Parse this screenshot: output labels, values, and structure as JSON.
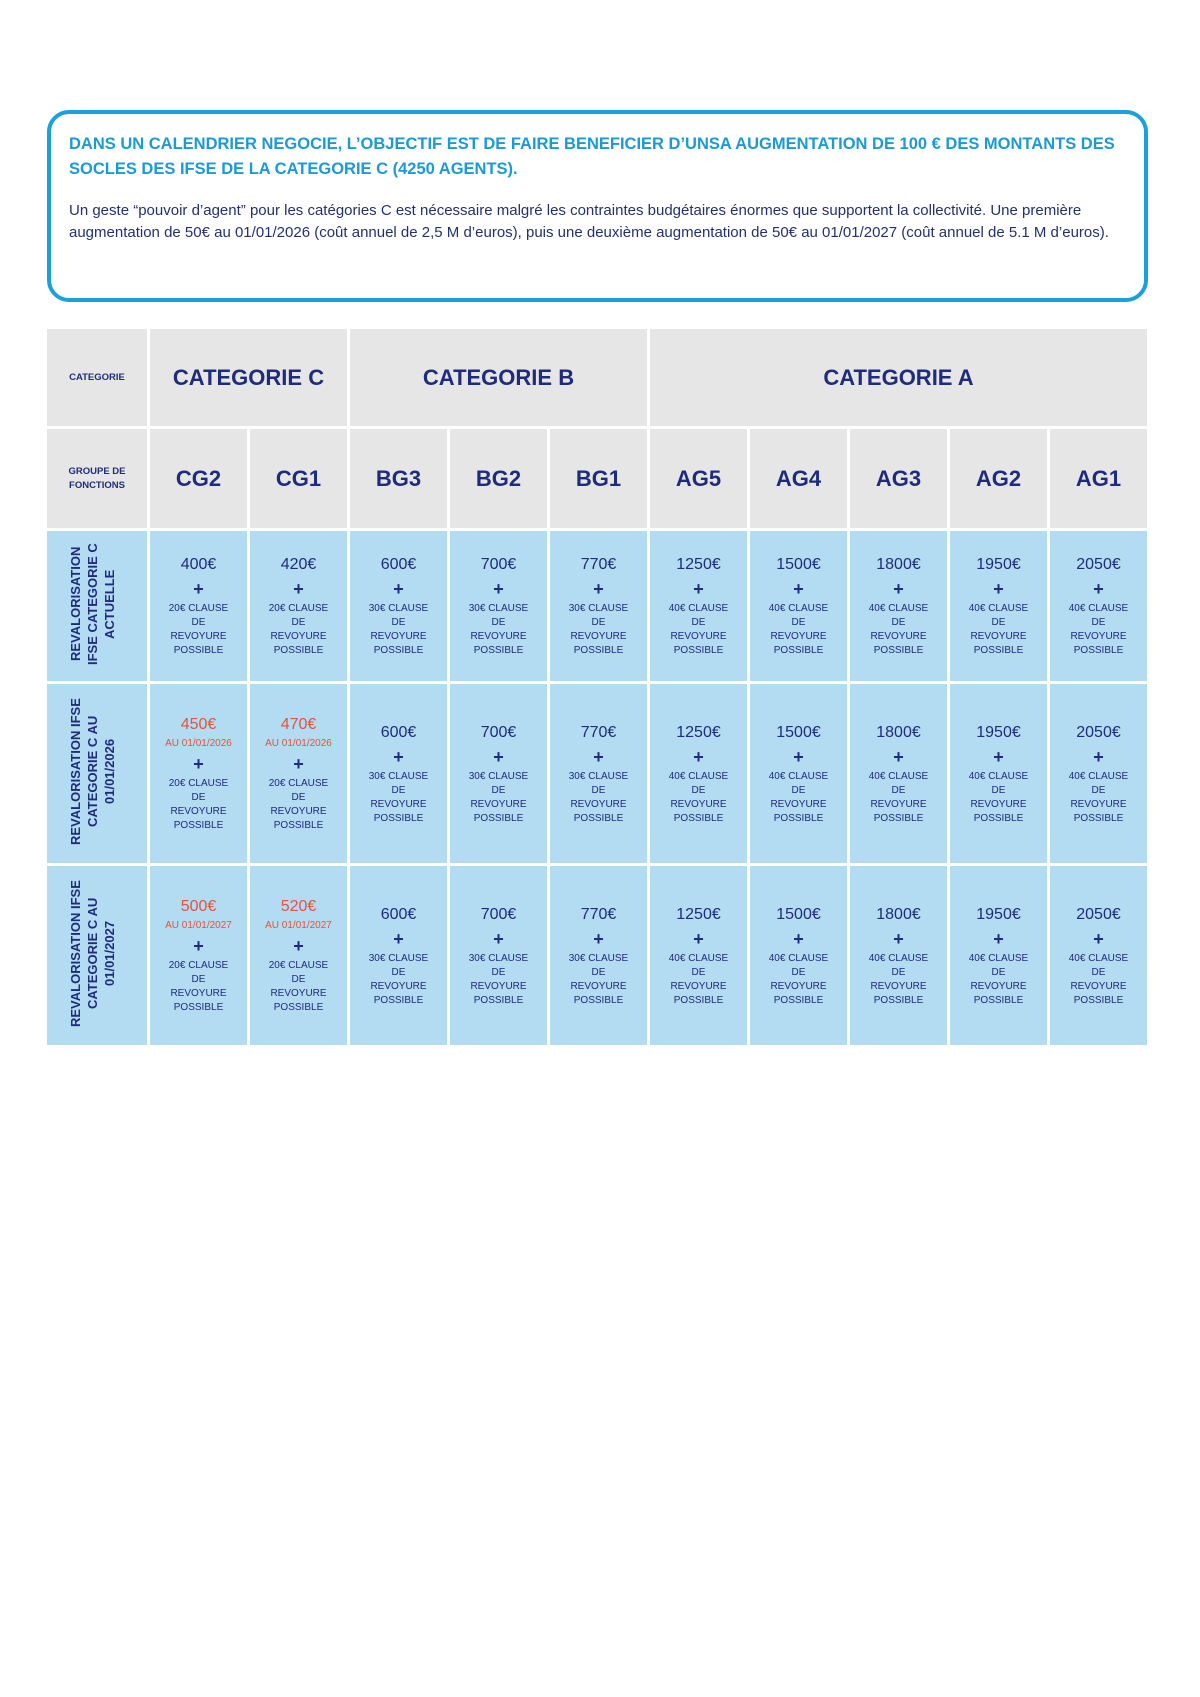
{
  "intro": {
    "title": "DANS UN CALENDRIER NEGOCIE, L’OBJECTIF EST DE FAIRE BENEFICIER D’UNSA AUGMENTATION DE 100 € DES MONTANTS DES SOCLES DES IFSE DE LA CATEGORIE C (4250 AGENTS).",
    "body": "Un geste “pouvoir d’agent” pour les catégories C est nécessaire malgré les contraintes budgétaires énormes que supportent la collectivité. Une première augmentation de 50€ au 01/01/2026 (coût annuel de 2,5 M d’euros), puis une deuxième augmentation de 50€ au 01/01/2027 (coût annuel de 5.1 M d’euros)."
  },
  "table": {
    "row_label_categorie": "CATEGORIE",
    "row_label_groupe": "GROUPE DE FONCTIONS",
    "categories": [
      "CATEGORIE C",
      "CATEGORIE B",
      "CATEGORIE A"
    ],
    "groups": [
      "CG2",
      "CG1",
      "BG3",
      "BG2",
      "BG1",
      "AG5",
      "AG4",
      "AG3",
      "AG2",
      "AG1"
    ],
    "plus": "+",
    "rows": [
      {
        "label": "REVALORISATION IFSE CATEGORIE C ACTUELLE",
        "cells": [
          {
            "amount": "400€",
            "note": "20€ CLAUSE DE REVOYURE POSSIBLE"
          },
          {
            "amount": "420€",
            "note": "20€ CLAUSE DE REVOYURE POSSIBLE"
          },
          {
            "amount": "600€",
            "note": "30€ CLAUSE DE REVOYURE POSSIBLE"
          },
          {
            "amount": "700€",
            "note": "30€ CLAUSE DE REVOYURE POSSIBLE"
          },
          {
            "amount": "770€",
            "note": "30€ CLAUSE DE REVOYURE POSSIBLE"
          },
          {
            "amount": "1250€",
            "note": "40€ CLAUSE DE REVOYURE POSSIBLE"
          },
          {
            "amount": "1500€",
            "note": "40€ CLAUSE DE REVOYURE POSSIBLE"
          },
          {
            "amount": "1800€",
            "note": "40€ CLAUSE DE REVOYURE POSSIBLE"
          },
          {
            "amount": "1950€",
            "note": "40€ CLAUSE DE REVOYURE POSSIBLE"
          },
          {
            "amount": "2050€",
            "note": "40€ CLAUSE DE REVOYURE POSSIBLE"
          }
        ]
      },
      {
        "label": "REVALORISATION IFSE CATEGORIE C AU 01/01/2026",
        "cells": [
          {
            "amount": "450€",
            "date": "AU 01/01/2026",
            "note": "20€ CLAUSE DE REVOYURE POSSIBLE"
          },
          {
            "amount": "470€",
            "date": "AU 01/01/2026",
            "note": "20€ CLAUSE DE REVOYURE POSSIBLE"
          },
          {
            "amount": "600€",
            "note": "30€ CLAUSE DE REVOYURE POSSIBLE"
          },
          {
            "amount": "700€",
            "note": "30€ CLAUSE DE REVOYURE POSSIBLE"
          },
          {
            "amount": "770€",
            "note": "30€ CLAUSE DE REVOYURE POSSIBLE"
          },
          {
            "amount": "1250€",
            "note": "40€ CLAUSE DE REVOYURE POSSIBLE"
          },
          {
            "amount": "1500€",
            "note": "40€ CLAUSE DE REVOYURE POSSIBLE"
          },
          {
            "amount": "1800€",
            "note": "40€ CLAUSE DE REVOYURE POSSIBLE"
          },
          {
            "amount": "1950€",
            "note": "40€ CLAUSE DE REVOYURE POSSIBLE"
          },
          {
            "amount": "2050€",
            "note": "40€ CLAUSE DE REVOYURE POSSIBLE"
          }
        ]
      },
      {
        "label": "REVALORISATION IFSE CATEGORIE C AU 01/01/2027",
        "cells": [
          {
            "amount": "500€",
            "date": "AU 01/01/2027",
            "note": "20€ CLAUSE DE REVOYURE POSSIBLE"
          },
          {
            "amount": "520€",
            "date": "AU 01/01/2027",
            "note": "20€ CLAUSE DE REVOYURE POSSIBLE"
          },
          {
            "amount": "600€",
            "note": "30€ CLAUSE DE REVOYURE POSSIBLE"
          },
          {
            "amount": "700€",
            "note": "30€ CLAUSE DE REVOYURE POSSIBLE"
          },
          {
            "amount": "770€",
            "note": "30€ CLAUSE DE REVOYURE POSSIBLE"
          },
          {
            "amount": "1250€",
            "note": "40€ CLAUSE DE REVOYURE POSSIBLE"
          },
          {
            "amount": "1500€",
            "note": "40€ CLAUSE DE REVOYURE POSSIBLE"
          },
          {
            "amount": "1800€",
            "note": "40€ CLAUSE DE REVOYURE POSSIBLE"
          },
          {
            "amount": "1950€",
            "note": "40€ CLAUSE DE REVOYURE POSSIBLE"
          },
          {
            "amount": "2050€",
            "note": "40€ CLAUSE DE REVOYURE POSSIBLE"
          }
        ]
      }
    ]
  },
  "colors": {
    "accent": "#1aa0dc",
    "navy": "#1f2b7b",
    "highlight": "#e0553e",
    "cell": "#b3dbf1",
    "header": "#e6e6e6"
  }
}
